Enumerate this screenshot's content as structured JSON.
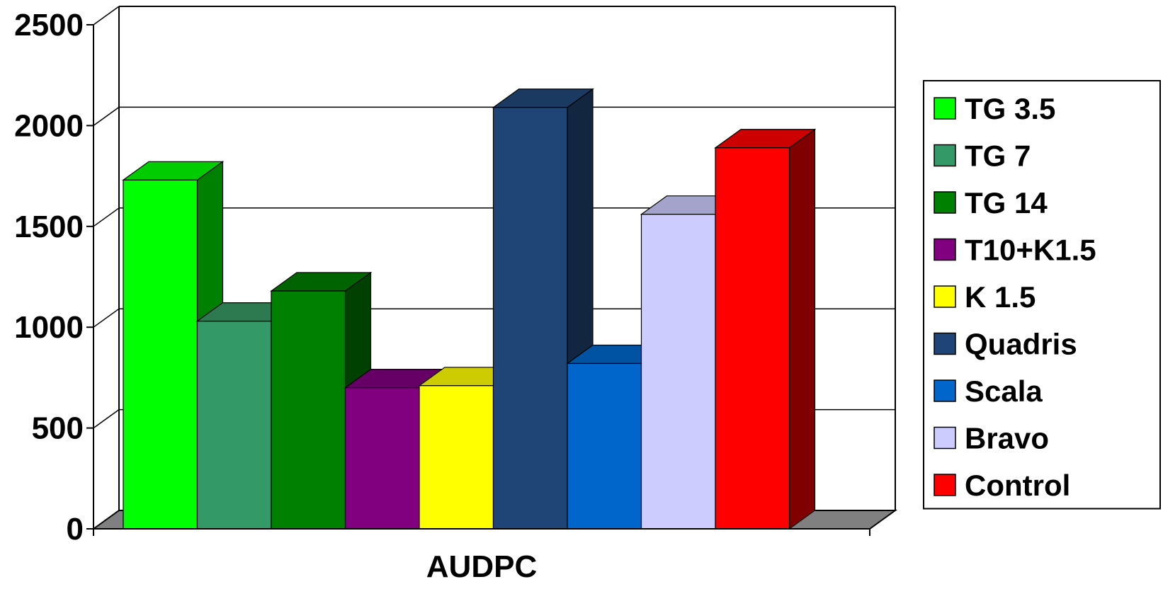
{
  "chart_data": {
    "type": "bar",
    "style": "3d-clustered-column",
    "categories": [
      "AUDPC"
    ],
    "series": [
      {
        "name": "TG 3.5",
        "values": [
          1730
        ],
        "color": "#00ff00",
        "side": "#008000",
        "top": "#00cc00"
      },
      {
        "name": "TG 7",
        "values": [
          1030
        ],
        "color": "#339966",
        "side": "#226644",
        "top": "#2e7a50"
      },
      {
        "name": "TG 14",
        "values": [
          1180
        ],
        "color": "#008000",
        "side": "#004000",
        "top": "#006400"
      },
      {
        "name": "T10+K1.5",
        "values": [
          700
        ],
        "color": "#800080",
        "side": "#400040",
        "top": "#660066"
      },
      {
        "name": "K 1.5",
        "values": [
          710
        ],
        "color": "#ffff00",
        "side": "#808000",
        "top": "#cccc00"
      },
      {
        "name": "Quadris",
        "values": [
          2090
        ],
        "color": "#1f4577",
        "side": "#13263f",
        "top": "#1a3a62"
      },
      {
        "name": "Scala",
        "values": [
          820
        ],
        "color": "#0066cc",
        "side": "#003366",
        "top": "#0052a3"
      },
      {
        "name": "Bravo",
        "values": [
          1560
        ],
        "color": "#ccccff",
        "side": "#666680",
        "top": "#a3a3cc"
      },
      {
        "name": "Control",
        "values": [
          1890
        ],
        "color": "#ff0000",
        "side": "#800000",
        "top": "#cc0000"
      }
    ],
    "yticks": [
      0,
      500,
      1000,
      1500,
      2000,
      2500
    ],
    "ylim": [
      0,
      2500
    ],
    "grid": true,
    "legend": "right",
    "floor_color": "#808080"
  }
}
